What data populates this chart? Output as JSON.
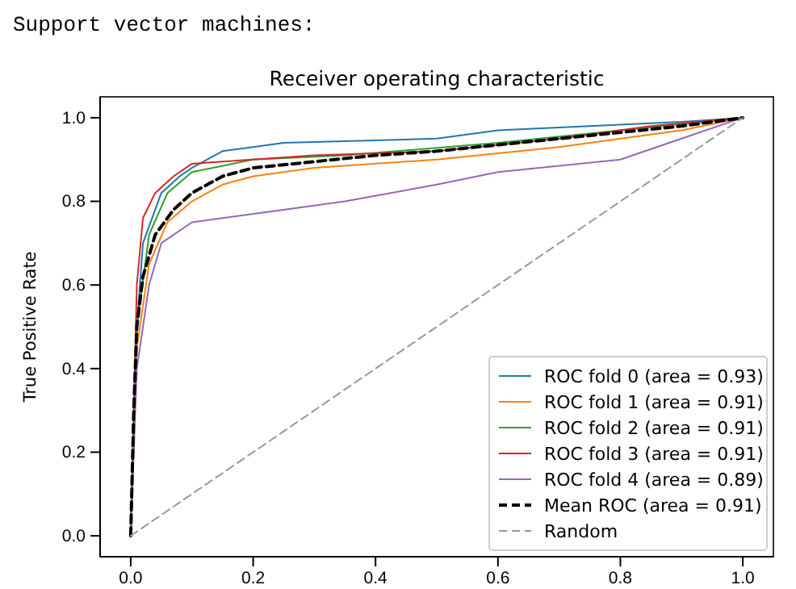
{
  "chart_data": {
    "type": "line",
    "title": "Receiver operating characteristic",
    "ylabel": "True Positive Rate",
    "annotations": [
      "Support vector machines:"
    ],
    "xlim": [
      -0.05,
      1.05
    ],
    "ylim": [
      -0.05,
      1.05
    ],
    "xticks": [
      {
        "value": 0,
        "label": "0.0"
      },
      0.2,
      0.4,
      0.6,
      0.8,
      {
        "value": 1,
        "label": "1.0"
      }
    ],
    "yticks": [
      {
        "value": 0,
        "label": "0.0"
      },
      0.2,
      0.4,
      0.6,
      0.8,
      {
        "value": 1,
        "label": "1.0"
      }
    ],
    "legend": "bottom right",
    "grid": false,
    "marker": "none",
    "series": [
      {
        "name": "ROC fold 0 (area = 0.93)",
        "color": "#1f77b4",
        "line_style": "solid",
        "x": [
          0,
          0.01,
          0.02,
          0.05,
          0.08,
          0.1,
          0.15,
          0.2,
          0.25,
          0.5,
          0.6,
          0.75,
          0.9,
          1
        ],
        "values": [
          0,
          0.5,
          0.7,
          0.82,
          0.86,
          0.88,
          0.92,
          0.93,
          0.94,
          0.95,
          0.97,
          0.98,
          0.99,
          1
        ]
      },
      {
        "name": "ROC fold 1 (area = 0.91)",
        "color": "#ff7f0e",
        "line_style": "solid",
        "x": [
          0,
          0.01,
          0.03,
          0.06,
          0.1,
          0.15,
          0.2,
          0.3,
          0.5,
          0.7,
          0.9,
          1
        ],
        "values": [
          0,
          0.45,
          0.65,
          0.75,
          0.8,
          0.84,
          0.86,
          0.88,
          0.9,
          0.93,
          0.97,
          1
        ]
      },
      {
        "name": "ROC fold 2 (area = 0.91)",
        "color": "#2ca02c",
        "line_style": "solid",
        "x": [
          0,
          0.01,
          0.03,
          0.06,
          0.1,
          0.2,
          0.35,
          0.6,
          0.8,
          1
        ],
        "values": [
          0,
          0.5,
          0.72,
          0.82,
          0.87,
          0.9,
          0.91,
          0.94,
          0.97,
          1
        ]
      },
      {
        "name": "ROC fold 3 (area = 0.91)",
        "color": "#d62728",
        "line_style": "solid",
        "x": [
          0,
          0.01,
          0.02,
          0.04,
          0.07,
          0.1,
          0.3,
          0.5,
          0.7,
          0.85,
          1
        ],
        "values": [
          0,
          0.6,
          0.76,
          0.82,
          0.86,
          0.89,
          0.91,
          0.92,
          0.95,
          0.98,
          1
        ]
      },
      {
        "name": "ROC fold 4 (area = 0.89)",
        "color": "#9467bd",
        "line_style": "solid",
        "x": [
          0,
          0.01,
          0.03,
          0.05,
          0.1,
          0.15,
          0.25,
          0.35,
          0.5,
          0.6,
          0.8,
          0.9,
          1
        ],
        "values": [
          0,
          0.4,
          0.6,
          0.7,
          0.75,
          0.76,
          0.78,
          0.8,
          0.84,
          0.87,
          0.9,
          0.95,
          1
        ]
      },
      {
        "name": "Mean ROC (area = 0.91)",
        "color": "#000000",
        "line_style": "dashed",
        "x": [
          0,
          0.005,
          0.01,
          0.02,
          0.04,
          0.07,
          0.1,
          0.15,
          0.2,
          0.3,
          0.4,
          0.5,
          0.6,
          0.7,
          0.8,
          0.9,
          1
        ],
        "values": [
          0,
          0.3,
          0.5,
          0.62,
          0.72,
          0.78,
          0.82,
          0.86,
          0.88,
          0.895,
          0.91,
          0.92,
          0.935,
          0.95,
          0.965,
          0.98,
          1
        ]
      },
      {
        "name": "Random",
        "color": "#999999",
        "line_style": "dashed",
        "x": [
          0,
          1
        ],
        "values": [
          0,
          1
        ]
      }
    ]
  }
}
